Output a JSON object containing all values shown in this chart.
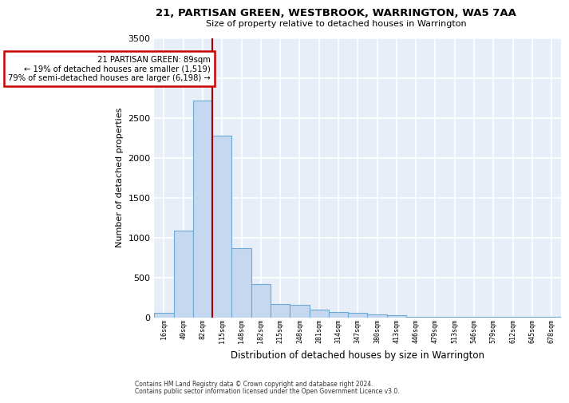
{
  "title": "21, PARTISAN GREEN, WESTBROOK, WARRINGTON, WA5 7AA",
  "subtitle": "Size of property relative to detached houses in Warrington",
  "xlabel": "Distribution of detached houses by size in Warrington",
  "ylabel": "Number of detached properties",
  "bar_values": [
    55,
    1090,
    2720,
    2280,
    870,
    420,
    170,
    160,
    95,
    65,
    55,
    35,
    25,
    10,
    5,
    5,
    5,
    5,
    5,
    5,
    5
  ],
  "bar_labels": [
    "16sqm",
    "49sqm",
    "82sqm",
    "115sqm",
    "148sqm",
    "182sqm",
    "215sqm",
    "248sqm",
    "281sqm",
    "314sqm",
    "347sqm",
    "380sqm",
    "413sqm",
    "446sqm",
    "479sqm",
    "513sqm",
    "546sqm",
    "579sqm",
    "612sqm",
    "645sqm",
    "678sqm"
  ],
  "bar_color": "#c5d8f0",
  "bar_edge_color": "#6aaad4",
  "vline_color": "#aa0000",
  "vline_x_index": 2.5,
  "annotation_line1": "21 PARTISAN GREEN: 89sqm",
  "annotation_line2": "← 19% of detached houses are smaller (1,519)",
  "annotation_line3": "79% of semi-detached houses are larger (6,198) →",
  "ylim": [
    0,
    3500
  ],
  "yticks": [
    0,
    500,
    1000,
    1500,
    2000,
    2500,
    3000,
    3500
  ],
  "background_color": "#e8eef8",
  "grid_color": "#d0d8e8",
  "footnote1": "Contains HM Land Registry data © Crown copyright and database right 2024.",
  "footnote2": "Contains public sector information licensed under the Open Government Licence v3.0."
}
